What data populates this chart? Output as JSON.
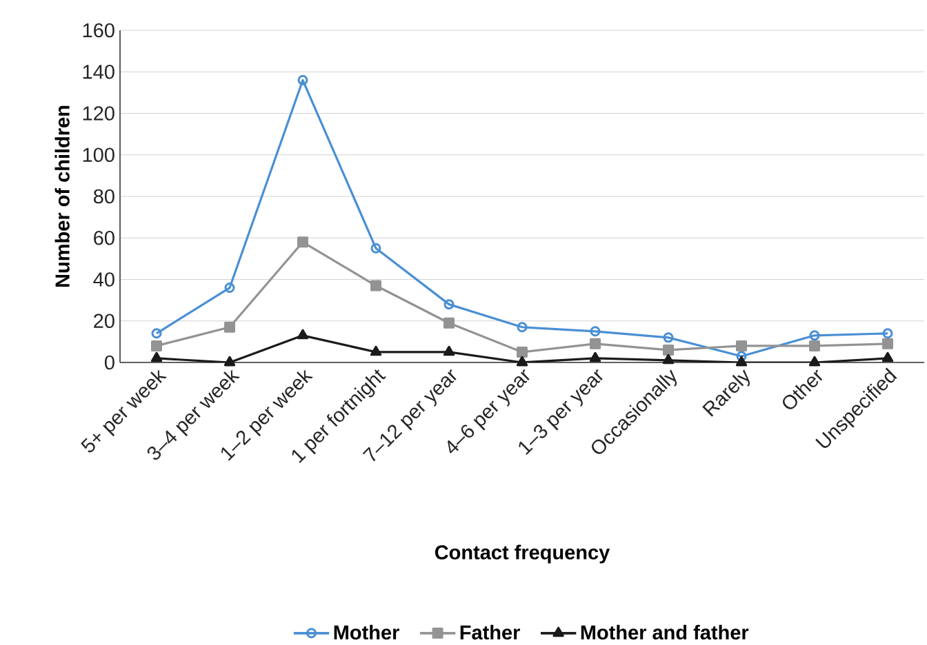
{
  "chart_data": {
    "type": "line",
    "xlabel": "Contact frequency",
    "ylabel": "Number of children",
    "categories": [
      "5+ per week",
      "3–4 per week",
      "1–2 per week",
      "1 per fortnight",
      "7–12 per year",
      "4–6 per year",
      "1–3 per year",
      "Occasionally",
      "Rarely",
      "Other",
      "Unspecified"
    ],
    "series": [
      {
        "name": "Mother",
        "color": "#4a8fd4",
        "marker": "circle",
        "values": [
          14,
          36,
          136,
          55,
          28,
          17,
          15,
          12,
          3,
          13,
          14
        ]
      },
      {
        "name": "Father",
        "color": "#939393",
        "marker": "square",
        "values": [
          8,
          17,
          58,
          37,
          19,
          5,
          9,
          6,
          8,
          8,
          9
        ]
      },
      {
        "name": "Mother and father",
        "color": "#1a1a1a",
        "marker": "triangle",
        "values": [
          2,
          0,
          13,
          5,
          5,
          0,
          2,
          1,
          0,
          0,
          2
        ]
      }
    ],
    "ylim": [
      0,
      160
    ],
    "yticks": [
      0,
      20,
      40,
      60,
      80,
      100,
      120,
      140,
      160
    ],
    "grid": "y",
    "legend": "bottom",
    "line_style": "solid"
  }
}
